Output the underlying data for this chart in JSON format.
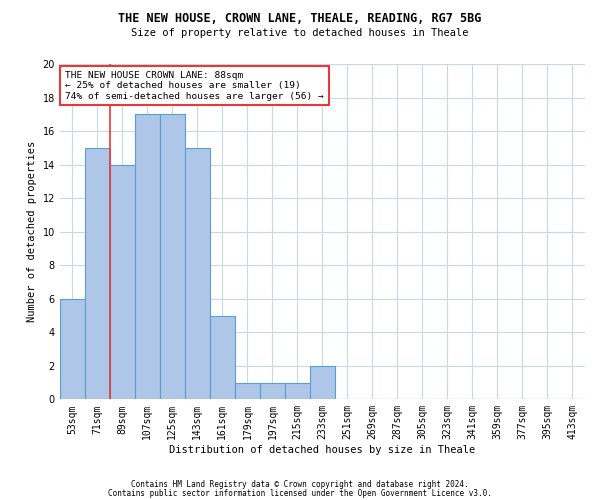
{
  "title": "THE NEW HOUSE, CROWN LANE, THEALE, READING, RG7 5BG",
  "subtitle": "Size of property relative to detached houses in Theale",
  "xlabel": "Distribution of detached houses by size in Theale",
  "ylabel": "Number of detached properties",
  "bin_labels": [
    "53sqm",
    "71sqm",
    "89sqm",
    "107sqm",
    "125sqm",
    "143sqm",
    "161sqm",
    "179sqm",
    "197sqm",
    "215sqm",
    "233sqm",
    "251sqm",
    "269sqm",
    "287sqm",
    "305sqm",
    "323sqm",
    "341sqm",
    "359sqm",
    "377sqm",
    "395sqm",
    "413sqm"
  ],
  "bar_values": [
    6,
    15,
    14,
    17,
    17,
    15,
    5,
    1,
    1,
    1,
    2,
    0,
    0,
    0,
    0,
    0,
    0,
    0,
    0,
    0,
    0
  ],
  "bar_color": "#aec6e8",
  "bar_edge_color": "#5a9fd4",
  "ylim": [
    0,
    20
  ],
  "yticks": [
    0,
    2,
    4,
    6,
    8,
    10,
    12,
    14,
    16,
    18,
    20
  ],
  "vline_color": "#e8393a",
  "annotation_text": "THE NEW HOUSE CROWN LANE: 88sqm\n← 25% of detached houses are smaller (19)\n74% of semi-detached houses are larger (56) →",
  "annotation_box_color": "#e8393a",
  "footer_line1": "Contains HM Land Registry data © Crown copyright and database right 2024.",
  "footer_line2": "Contains public sector information licensed under the Open Government Licence v3.0.",
  "background_color": "#ffffff",
  "grid_color": "#c8d8e8",
  "title_fontsize": 8.5,
  "subtitle_fontsize": 7.5,
  "xlabel_fontsize": 7.5,
  "ylabel_fontsize": 7.5,
  "tick_fontsize": 7.0,
  "annotation_fontsize": 6.8,
  "footer_fontsize": 5.5
}
